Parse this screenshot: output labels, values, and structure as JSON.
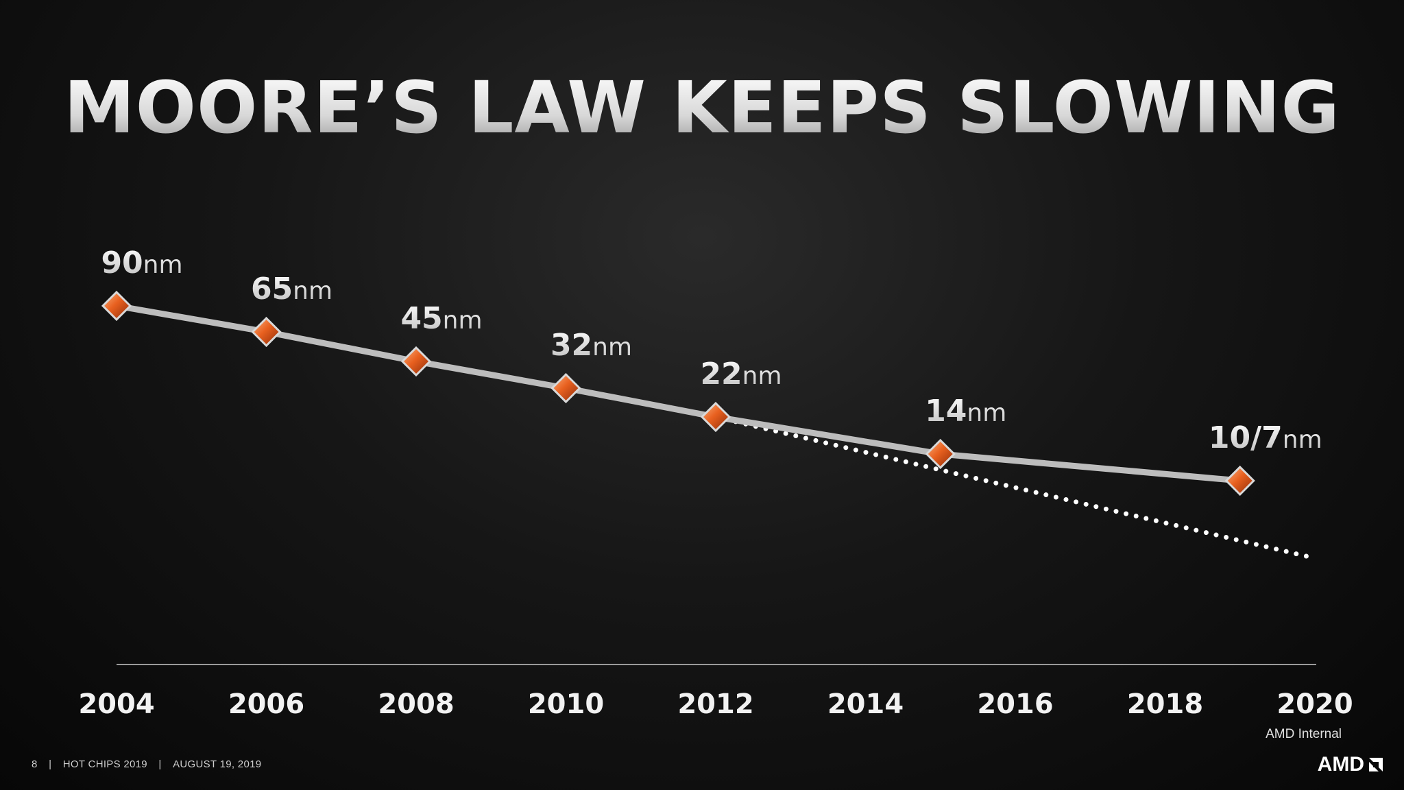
{
  "slide": {
    "title": "MOORE’S LAW KEEPS SLOWING",
    "footer": {
      "page_number": "8",
      "event": "HOT CHIPS 2019",
      "date": "AUGUST 19, 2019",
      "separator": "|"
    },
    "classification": "AMD Internal",
    "logo_text": "AMD",
    "logo_icon": "amd-arrow-icon"
  },
  "chart_data": {
    "type": "line",
    "title": "MOORE’S LAW KEEPS SLOWING",
    "xlabel": "",
    "ylabel": "",
    "x_ticks": [
      "2004",
      "2006",
      "2008",
      "2010",
      "2012",
      "2014",
      "2016",
      "2018",
      "2020"
    ],
    "xlim": [
      2004,
      2020
    ],
    "unit_suffix": "nm",
    "series": [
      {
        "style": "solid",
        "points": [
          {
            "x": 2004,
            "node": "90"
          },
          {
            "x": 2006,
            "node": "65"
          },
          {
            "x": 2008,
            "node": "45"
          },
          {
            "x": 2010,
            "node": "32"
          },
          {
            "x": 2012,
            "node": "22"
          },
          {
            "x": 2015,
            "node": "14"
          },
          {
            "x": 2019,
            "node": "10/7"
          }
        ]
      },
      {
        "style": "dotted",
        "note_from_x": 2012,
        "note_to_x": 2020
      }
    ],
    "colors": {
      "line": "#bdbdbd",
      "marker": "#e0561c",
      "marker_light": "#f7a070",
      "dotted": "#ffffff",
      "axis": "#9a9a9a"
    },
    "grid": false,
    "legend": "none"
  }
}
